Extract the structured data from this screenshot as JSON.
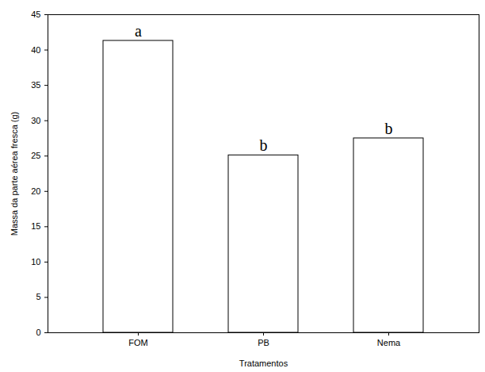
{
  "chart_data": {
    "type": "bar",
    "x_label": "Tratamentos",
    "y_label": "Massa da parte aérea fresca (g)",
    "categories": [
      "FOM",
      "PB",
      "Nema"
    ],
    "values": [
      41.3,
      25.1,
      27.5
    ],
    "annotations": [
      "a",
      "b",
      "b"
    ],
    "color": "#ffffff",
    "ylim": [
      0,
      45
    ],
    "yticks": [
      0,
      5,
      10,
      15,
      20,
      25,
      30,
      35,
      40,
      45
    ],
    "grid": false
  }
}
